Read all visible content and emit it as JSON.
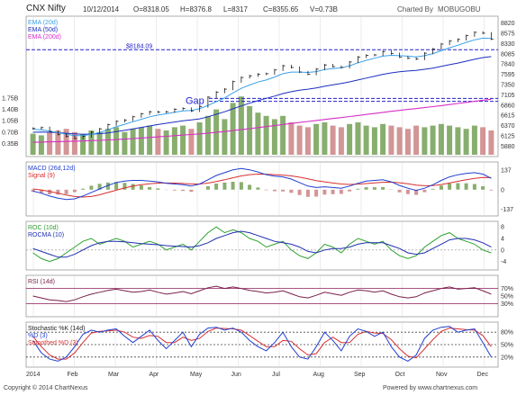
{
  "header": {
    "symbol": "CNX Nifty",
    "date": "10/12/2014",
    "open": "O=8318.05",
    "high": "H=8376.8",
    "low": "L=8317",
    "close": "C=8355.65",
    "volume": "V=0.73B",
    "charted_by": "Charted By",
    "brand": "MOBUGOBU"
  },
  "footer": {
    "copyright": "Copyright © 2014 ChartNexus",
    "powered_by": "Powered by www.chartnexus.com"
  },
  "colors": {
    "price": "#1a1a1a",
    "ema20": "#3aa0e8",
    "ema50": "#1b2fbf",
    "ema200": "#d62ec8",
    "vol_up": "#6a9a4a",
    "vol_down": "#c87a7a",
    "macd": "#1f3fd0",
    "signal": "#d83030",
    "roc": "#2ea02e",
    "rocma": "#1f2fb0",
    "rsi": "#7a1f4a",
    "level": "#8a1a5a",
    "stoch_k": "#1f3fd0",
    "stoch_d": "#d83030",
    "ref_line": "#2222cc"
  },
  "chart_data": [
    {
      "type": "line",
      "panel": "price",
      "legend": [
        "EMA (20d)",
        "EMA (50d)",
        "EMA (200d)"
      ],
      "x_labels": [
        "2014",
        "Feb",
        "Mar",
        "Apr",
        "May",
        "Jun",
        "Jul",
        "Aug",
        "Sep",
        "Oct",
        "Nov",
        "Dec"
      ],
      "y_ticks": [
        5880,
        6125,
        6370,
        6615,
        6860,
        7105,
        7350,
        7595,
        7840,
        8085,
        8330,
        8575,
        8820
      ],
      "ylim": [
        5800,
        8900
      ],
      "annotations": [
        {
          "text": "$8184.09",
          "value": 8184.09
        },
        {
          "text": "Gap",
          "value": 6950
        }
      ],
      "gap_band": [
        6950,
        7020
      ],
      "close": [
        6300,
        6320,
        6230,
        6160,
        6110,
        6060,
        6110,
        6210,
        6290,
        6390,
        6470,
        6500,
        6580,
        6650,
        6700,
        6690,
        6700,
        6760,
        6780,
        6720,
        6820,
        7050,
        7170,
        7240,
        7420,
        7520,
        7560,
        7600,
        7610,
        7700,
        7800,
        7760,
        7650,
        7600,
        7720,
        7820,
        7780,
        7760,
        7890,
        8010,
        8050,
        8060,
        8140,
        8090,
        8010,
        7980,
        7960,
        8100,
        8200,
        8320,
        8390,
        8430,
        8520,
        8600,
        8580,
        8440
      ],
      "ema20": [
        6280,
        6270,
        6240,
        6200,
        6160,
        6130,
        6130,
        6160,
        6200,
        6270,
        6340,
        6400,
        6460,
        6520,
        6580,
        6620,
        6650,
        6690,
        6720,
        6730,
        6770,
        6850,
        6940,
        7030,
        7150,
        7260,
        7340,
        7410,
        7460,
        7530,
        7610,
        7650,
        7650,
        7640,
        7660,
        7710,
        7730,
        7750,
        7800,
        7870,
        7930,
        7980,
        8030,
        8050,
        8040,
        8030,
        8010,
        8040,
        8090,
        8160,
        8230,
        8290,
        8360,
        8420,
        8460,
        8455
      ],
      "ema50": [
        6210,
        6215,
        6210,
        6200,
        6185,
        6170,
        6160,
        6165,
        6175,
        6195,
        6225,
        6255,
        6290,
        6325,
        6360,
        6395,
        6425,
        6455,
        6485,
        6505,
        6530,
        6580,
        6640,
        6700,
        6770,
        6840,
        6905,
        6965,
        7020,
        7075,
        7135,
        7180,
        7215,
        7240,
        7270,
        7310,
        7345,
        7375,
        7415,
        7460,
        7505,
        7550,
        7595,
        7630,
        7655,
        7675,
        7690,
        7715,
        7745,
        7785,
        7825,
        7865,
        7910,
        7955,
        7995,
        8020
      ],
      "ema200": [
        5970,
        5975,
        5980,
        5985,
        5990,
        5995,
        6000,
        6008,
        6016,
        6025,
        6035,
        6046,
        6058,
        6071,
        6085,
        6099,
        6113,
        6127,
        6142,
        6156,
        6171,
        6188,
        6207,
        6227,
        6249,
        6272,
        6296,
        6320,
        6344,
        6369,
        6395,
        6420,
        6444,
        6467,
        6490,
        6514,
        6538,
        6561,
        6585,
        6610,
        6635,
        6660,
        6685,
        6710,
        6733,
        6755,
        6776,
        6799,
        6822,
        6847,
        6872,
        6897,
        6923,
        6950,
        6976,
        7000
      ]
    },
    {
      "type": "bar",
      "panel": "volume",
      "y_ticks": [
        "1.75B",
        "1.40B",
        "1.05B",
        "0.70B",
        "0.35B"
      ],
      "ylim": [
        0,
        2.0
      ],
      "values": [
        0.65,
        0.6,
        0.7,
        0.75,
        0.8,
        0.7,
        0.65,
        0.75,
        0.7,
        0.8,
        0.85,
        0.7,
        0.8,
        0.85,
        0.9,
        0.8,
        0.75,
        0.85,
        0.9,
        0.8,
        1.0,
        1.2,
        1.4,
        1.1,
        1.6,
        1.8,
        1.5,
        1.3,
        1.2,
        1.1,
        1.2,
        1.0,
        0.9,
        0.85,
        0.95,
        1.0,
        0.9,
        0.85,
        0.95,
        1.0,
        0.9,
        0.85,
        0.95,
        0.9,
        0.85,
        0.8,
        0.9,
        0.85,
        0.9,
        0.95,
        0.9,
        0.85,
        0.8,
        0.9,
        0.85,
        0.75
      ]
    },
    {
      "type": "line",
      "panel": "macd",
      "legend": [
        "MACD (26d,12d)",
        "Signal (9)"
      ],
      "y_ticks": [
        137,
        0,
        -137
      ],
      "ylim": [
        -160,
        170
      ],
      "macd": [
        -10,
        -25,
        -45,
        -60,
        -70,
        -65,
        -45,
        -20,
        5,
        30,
        50,
        60,
        65,
        65,
        60,
        55,
        45,
        40,
        35,
        25,
        40,
        70,
        100,
        120,
        140,
        150,
        140,
        125,
        105,
        95,
        90,
        75,
        50,
        25,
        15,
        20,
        15,
        10,
        25,
        45,
        60,
        65,
        70,
        55,
        30,
        10,
        -5,
        10,
        35,
        65,
        90,
        105,
        115,
        120,
        110,
        80
      ],
      "signal": [
        5,
        -2,
        -12,
        -25,
        -38,
        -48,
        -52,
        -48,
        -36,
        -20,
        -4,
        12,
        25,
        35,
        42,
        46,
        47,
        46,
        44,
        40,
        40,
        46,
        57,
        70,
        84,
        97,
        106,
        110,
        109,
        106,
        103,
        97,
        88,
        76,
        64,
        55,
        47,
        40,
        37,
        39,
        43,
        48,
        52,
        53,
        49,
        41,
        32,
        28,
        29,
        36,
        47,
        59,
        70,
        80,
        86,
        85
      ]
    },
    {
      "type": "line",
      "panel": "roc",
      "legend": [
        "ROC (10d)",
        "ROCMA (10)"
      ],
      "y_ticks": [
        8,
        4,
        0,
        -4
      ],
      "ylim": [
        -6,
        9
      ],
      "roc": [
        -1,
        -3,
        -4,
        -3,
        -1,
        1,
        3,
        4,
        2,
        3,
        4,
        3,
        1,
        2,
        3,
        2,
        0,
        1,
        2,
        0,
        3,
        6,
        8,
        6,
        7,
        6,
        4,
        3,
        1,
        2,
        3,
        0,
        -2,
        -3,
        -1,
        2,
        1,
        -1,
        2,
        4,
        3,
        2,
        3,
        0,
        -2,
        -3,
        -2,
        1,
        3,
        5,
        6,
        4,
        3,
        2,
        0,
        -1
      ],
      "rocma": [
        0.5,
        -0.5,
        -1.5,
        -2.5,
        -2.5,
        -1.5,
        0,
        1.5,
        2.5,
        3,
        3,
        2.8,
        2.5,
        2.2,
        2,
        1.8,
        1.5,
        1.3,
        1.2,
        1,
        1.5,
        2.5,
        4,
        5,
        6,
        6.5,
        6,
        5,
        4,
        3,
        2.5,
        2,
        1,
        -0.5,
        -1,
        0,
        0.5,
        0.5,
        1,
        2,
        2.5,
        2.5,
        2.5,
        1.5,
        0.5,
        -1,
        -1.5,
        -1,
        0.5,
        2,
        3.5,
        4,
        4,
        3.5,
        2.5,
        1
      ]
    },
    {
      "type": "line",
      "panel": "rsi",
      "legend": [
        "RSI (14d)"
      ],
      "y_ticks": [
        "70%",
        "50%",
        "30%"
      ],
      "levels": [
        70,
        30
      ],
      "ylim": [
        0,
        100
      ],
      "values": [
        50,
        45,
        40,
        38,
        35,
        40,
        48,
        55,
        60,
        65,
        68,
        64,
        60,
        62,
        66,
        60,
        55,
        58,
        62,
        56,
        64,
        72,
        76,
        70,
        74,
        70,
        65,
        62,
        58,
        60,
        64,
        56,
        48,
        45,
        52,
        60,
        56,
        52,
        60,
        66,
        64,
        60,
        64,
        55,
        48,
        45,
        48,
        58,
        64,
        70,
        74,
        68,
        70,
        72,
        64,
        55
      ]
    },
    {
      "type": "line",
      "panel": "stochastic",
      "legend": [
        "Stochastic %K (14d)",
        "%D (3)",
        "Smoothed %D (3)"
      ],
      "y_ticks": [
        "80%",
        "50%",
        "20%"
      ],
      "levels": [
        80,
        50,
        20
      ],
      "ylim": [
        0,
        100
      ],
      "k": [
        60,
        30,
        15,
        10,
        20,
        45,
        75,
        85,
        80,
        85,
        88,
        70,
        55,
        70,
        85,
        60,
        40,
        60,
        80,
        45,
        75,
        90,
        92,
        85,
        90,
        80,
        60,
        45,
        35,
        55,
        80,
        45,
        20,
        15,
        45,
        80,
        60,
        35,
        70,
        88,
        82,
        70,
        80,
        45,
        20,
        10,
        25,
        65,
        85,
        92,
        94,
        80,
        85,
        88,
        55,
        20
      ],
      "d": [
        70,
        45,
        25,
        15,
        15,
        30,
        55,
        78,
        82,
        83,
        85,
        80,
        68,
        65,
        72,
        70,
        55,
        55,
        68,
        60,
        65,
        82,
        90,
        89,
        88,
        85,
        72,
        58,
        45,
        45,
        60,
        58,
        40,
        25,
        28,
        55,
        68,
        55,
        55,
        75,
        82,
        78,
        77,
        62,
        40,
        22,
        18,
        40,
        62,
        82,
        90,
        88,
        86,
        85,
        72,
        45
      ]
    }
  ]
}
